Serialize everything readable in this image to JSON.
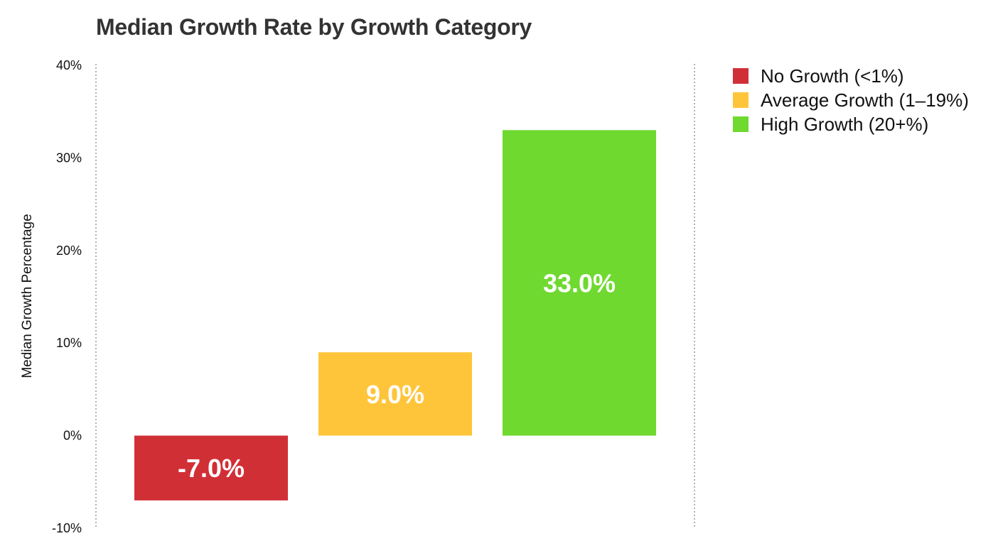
{
  "chart_data": {
    "type": "bar",
    "title": "Median Growth Rate by Growth Category",
    "xlabel": "",
    "ylabel": "Median Growth Percentage",
    "ylim": [
      -10,
      40
    ],
    "yticks": [
      40,
      30,
      20,
      10,
      0,
      -10
    ],
    "ytick_labels": [
      "40%",
      "30%",
      "20%",
      "10%",
      "0%",
      "-10%"
    ],
    "categories": [
      "No Growth (<1%)",
      "Average Growth (1–19%)",
      "High Growth (20+%)"
    ],
    "values": [
      -7.0,
      9.0,
      33.0
    ],
    "data_labels": [
      "-7.0%",
      "9.0%",
      "33.0%"
    ],
    "colors": [
      "#d12f36",
      "#ffc53a",
      "#6fd930"
    ],
    "legend": {
      "placement": "top-right outside",
      "entries": [
        "No Growth (<1%)",
        "Average Growth (1–19%)",
        "High Growth (20+%)"
      ]
    },
    "grid": false
  }
}
